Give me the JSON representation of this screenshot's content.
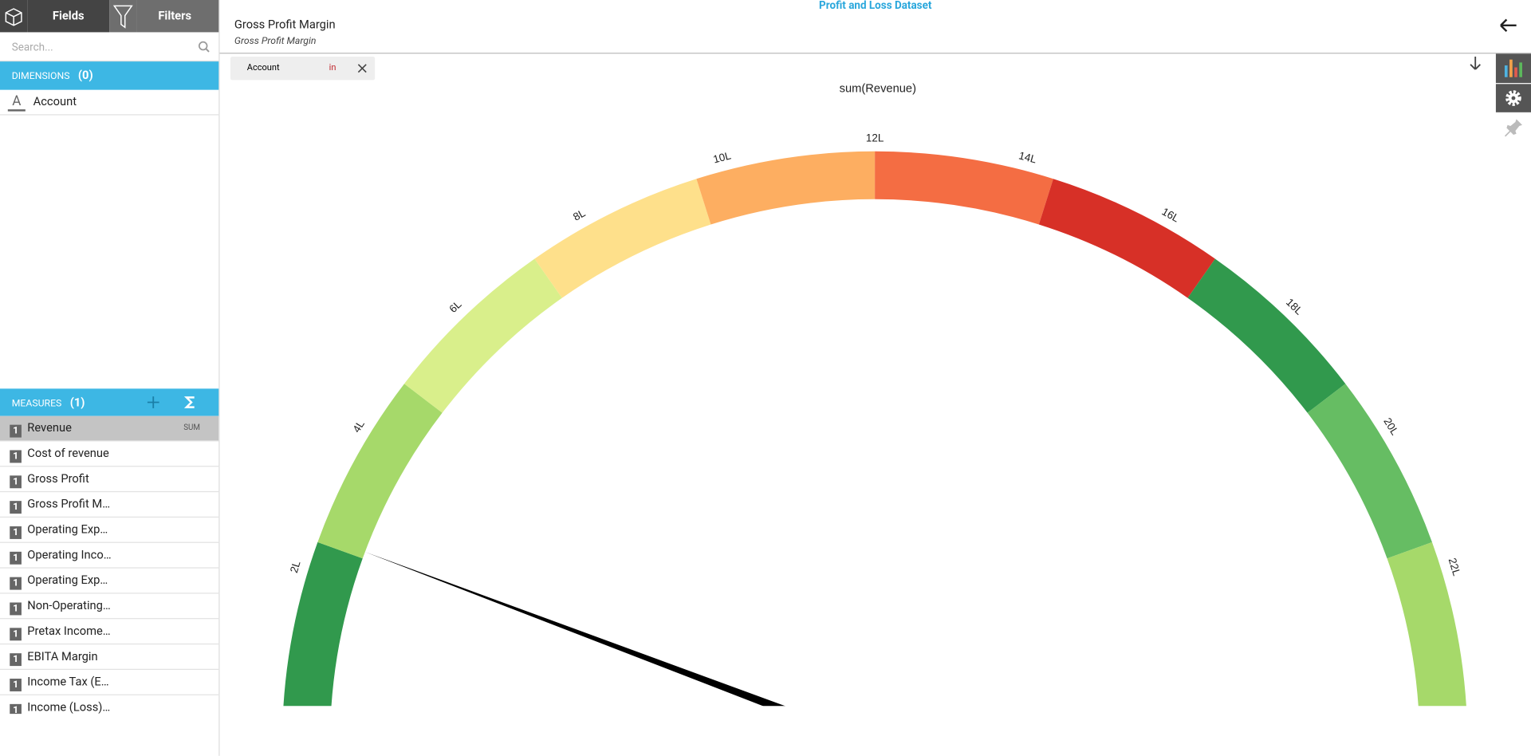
{
  "header": {
    "dataset": "Profit and Loss Dataset",
    "title": "Gross Profit Margin",
    "subtitle": "Gross Profit Margin"
  },
  "sidebar": {
    "tabs": [
      "Fields",
      "Filters"
    ],
    "search_placeholder": "Search...",
    "dimension_icon": "A",
    "measure_icon": "1",
    "dimensions": {
      "label": "DIMENSIONS",
      "count": "(0)",
      "items": [
        "Account"
      ]
    },
    "measures": {
      "label": "MEASURES",
      "count": "(1)",
      "aggregation": "SUM",
      "items": [
        "Revenue",
        "Cost of revenue",
        "Gross Profit",
        "Gross Profit M…",
        "Operating Exp…",
        "Operating Inco…",
        "Operating Exp…",
        "Non-Operating…",
        "Pretax Income…",
        "EBITA Margin",
        "Income Tax (E…",
        "Income (Loss)…"
      ]
    }
  },
  "filter": {
    "field": "Account",
    "operator": "in"
  },
  "chart_data": {
    "type": "gauge",
    "title": "sum(Revenue)",
    "value": 250000,
    "ylim": [
      0,
      2400000
    ],
    "yticks": [
      {
        "value": 200000,
        "label": "2L"
      },
      {
        "value": 400000,
        "label": "4L"
      },
      {
        "value": 600000,
        "label": "6L"
      },
      {
        "value": 800000,
        "label": "8L"
      },
      {
        "value": 1000000,
        "label": "10L"
      },
      {
        "value": 1200000,
        "label": "12L"
      },
      {
        "value": 1400000,
        "label": "14L"
      },
      {
        "value": 1600000,
        "label": "16L"
      },
      {
        "value": 1800000,
        "label": "18L"
      },
      {
        "value": 2000000,
        "label": "20L"
      },
      {
        "value": 2200000,
        "label": "22L"
      }
    ],
    "bands": [
      {
        "from": 0,
        "to": 240000,
        "color": "#31994d"
      },
      {
        "from": 240000,
        "to": 480000,
        "color": "#a6d96a"
      },
      {
        "from": 480000,
        "to": 720000,
        "color": "#d9ef8b"
      },
      {
        "from": 720000,
        "to": 960000,
        "color": "#fee08b"
      },
      {
        "from": 960000,
        "to": 1200000,
        "color": "#fdae61"
      },
      {
        "from": 1200000,
        "to": 1440000,
        "color": "#f46d43"
      },
      {
        "from": 1440000,
        "to": 1680000,
        "color": "#d73027"
      },
      {
        "from": 1680000,
        "to": 1920000,
        "color": "#31994d"
      },
      {
        "from": 1920000,
        "to": 2160000,
        "color": "#66bd63"
      },
      {
        "from": 2160000,
        "to": 2400000,
        "color": "#a6d96a"
      }
    ]
  }
}
